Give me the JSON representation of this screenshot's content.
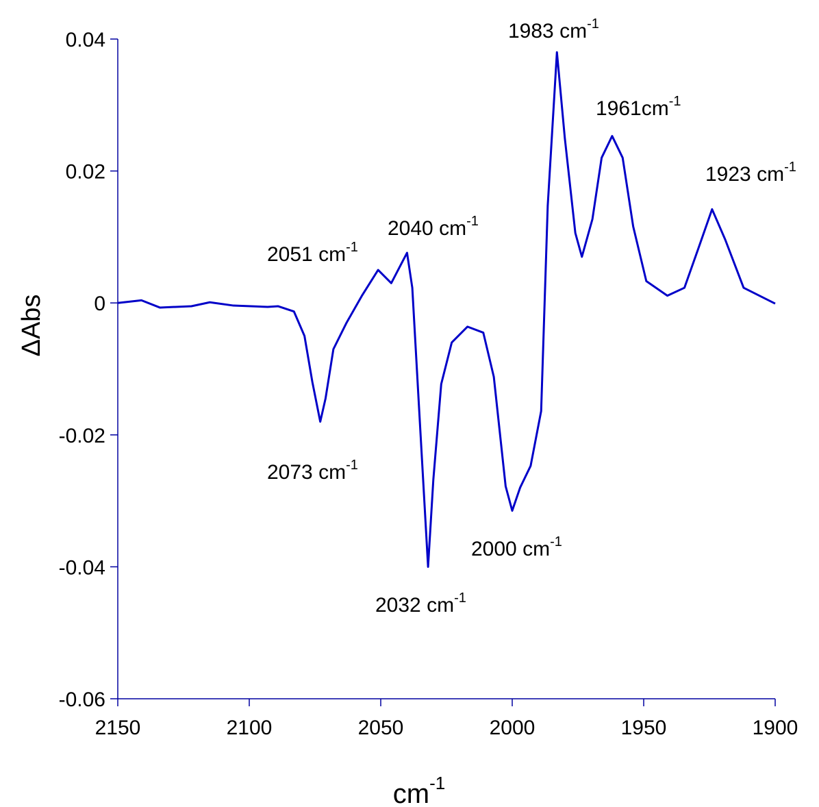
{
  "chart_data": {
    "type": "line",
    "x_label": {
      "text": "cm",
      "sup": "-1"
    },
    "y_label": "ΔAbs",
    "xlim": [
      2150,
      1900
    ],
    "xticks": [
      2150,
      2100,
      2050,
      2000,
      1950,
      1900
    ],
    "ylim": [
      -0.06,
      0.04
    ],
    "yticks": [
      0.04,
      0.02,
      0,
      -0.02,
      -0.04,
      -0.06
    ],
    "axis_color": "#0000a0",
    "series": [
      {
        "color": "#0000c8",
        "x": [
          2150,
          2141,
          2134,
          2122,
          2115,
          2106,
          2093,
          2089,
          2083,
          2079,
          2076,
          2073,
          2071,
          2068,
          2063,
          2057,
          2051,
          2046,
          2040,
          2038,
          2035.5,
          2032,
          2030,
          2027,
          2023,
          2017,
          2011,
          2007,
          2002.5,
          2000,
          1997,
          1993,
          1989,
          1986.5,
          1983,
          1980,
          1976,
          1973.5,
          1969.5,
          1966,
          1962,
          1958,
          1954,
          1949,
          1941,
          1934.5,
          1929,
          1924,
          1919,
          1912,
          1900
        ],
        "values": [
          0,
          0.0004,
          -0.0007,
          -0.0005,
          0.0001,
          -0.0004,
          -0.0006,
          -0.0005,
          -0.0013,
          -0.005,
          -0.012,
          -0.018,
          -0.0145,
          -0.007,
          -0.003,
          0.0012,
          0.005,
          0.003,
          0.0076,
          0.0023,
          -0.0154,
          -0.04,
          -0.0268,
          -0.0123,
          -0.006,
          -0.0036,
          -0.0045,
          -0.0112,
          -0.0278,
          -0.0315,
          -0.028,
          -0.0247,
          -0.0164,
          0.0147,
          0.038,
          0.025,
          0.0106,
          0.007,
          0.0127,
          0.022,
          0.0253,
          0.022,
          0.0116,
          0.0033,
          0.0011,
          0.0023,
          0.0085,
          0.0142,
          0.0096,
          0.0023,
          -0.0001
        ]
      }
    ],
    "annotations": [
      {
        "text": "1983 cm",
        "sup": "-1"
      },
      {
        "text": "1961cm",
        "sup": "-1"
      },
      {
        "text": "1923 cm",
        "sup": "-1"
      },
      {
        "text": "2040 cm",
        "sup": "-1"
      },
      {
        "text": "2051 cm",
        "sup": "-1"
      },
      {
        "text": "2073 cm",
        "sup": "-1"
      },
      {
        "text": "2032 cm",
        "sup": "-1"
      },
      {
        "text": "2000 cm",
        "sup": "-1"
      }
    ]
  }
}
